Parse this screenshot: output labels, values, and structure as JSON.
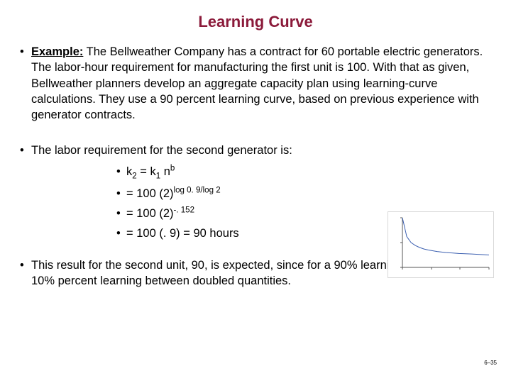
{
  "title": "Learning Curve",
  "title_color": "#8b1a3a",
  "block1": {
    "label": "Example:",
    "text": " The Bellweather Company has a contract for 60 portable electric generators. The labor-hour requirement for manufacturing the first unit is 100. With that as given, Bellweather planners develop an aggregate capacity plan using learning-curve calculations. They use a 90 percent learning curve, based on previous experience with generator contracts."
  },
  "block2": {
    "intro": "The labor requirement for the second generator is:",
    "items": [
      {
        "html": "k<sub>2</sub> = k<sub>1</sub> n<sup>b</sup>"
      },
      {
        "html": "= 100 (2)<sup>log 0. 9/log 2</sup>"
      },
      {
        "html": "= 100 (2)<sup>-. 152</sup>"
      },
      {
        "html": "= 100 (. 9) = 90 hours"
      }
    ]
  },
  "block3": {
    "text": "This result for the second unit, 90, is expected, since for a 90% learning curve there is a 10% percent learning between doubled quantities."
  },
  "page_number": "6–35",
  "chart": {
    "type": "line",
    "line_color": "#3b5fb0",
    "axis_color": "#555555",
    "background_color": "#ffffff",
    "x": [
      0,
      5,
      10,
      15,
      20,
      25,
      30,
      40,
      50,
      65,
      80,
      100
    ],
    "y": [
      100,
      62,
      50,
      44,
      40,
      37,
      35,
      32,
      30,
      28,
      27,
      25
    ],
    "xlim": [
      0,
      100
    ],
    "ylim": [
      0,
      100
    ],
    "line_width": 1
  }
}
